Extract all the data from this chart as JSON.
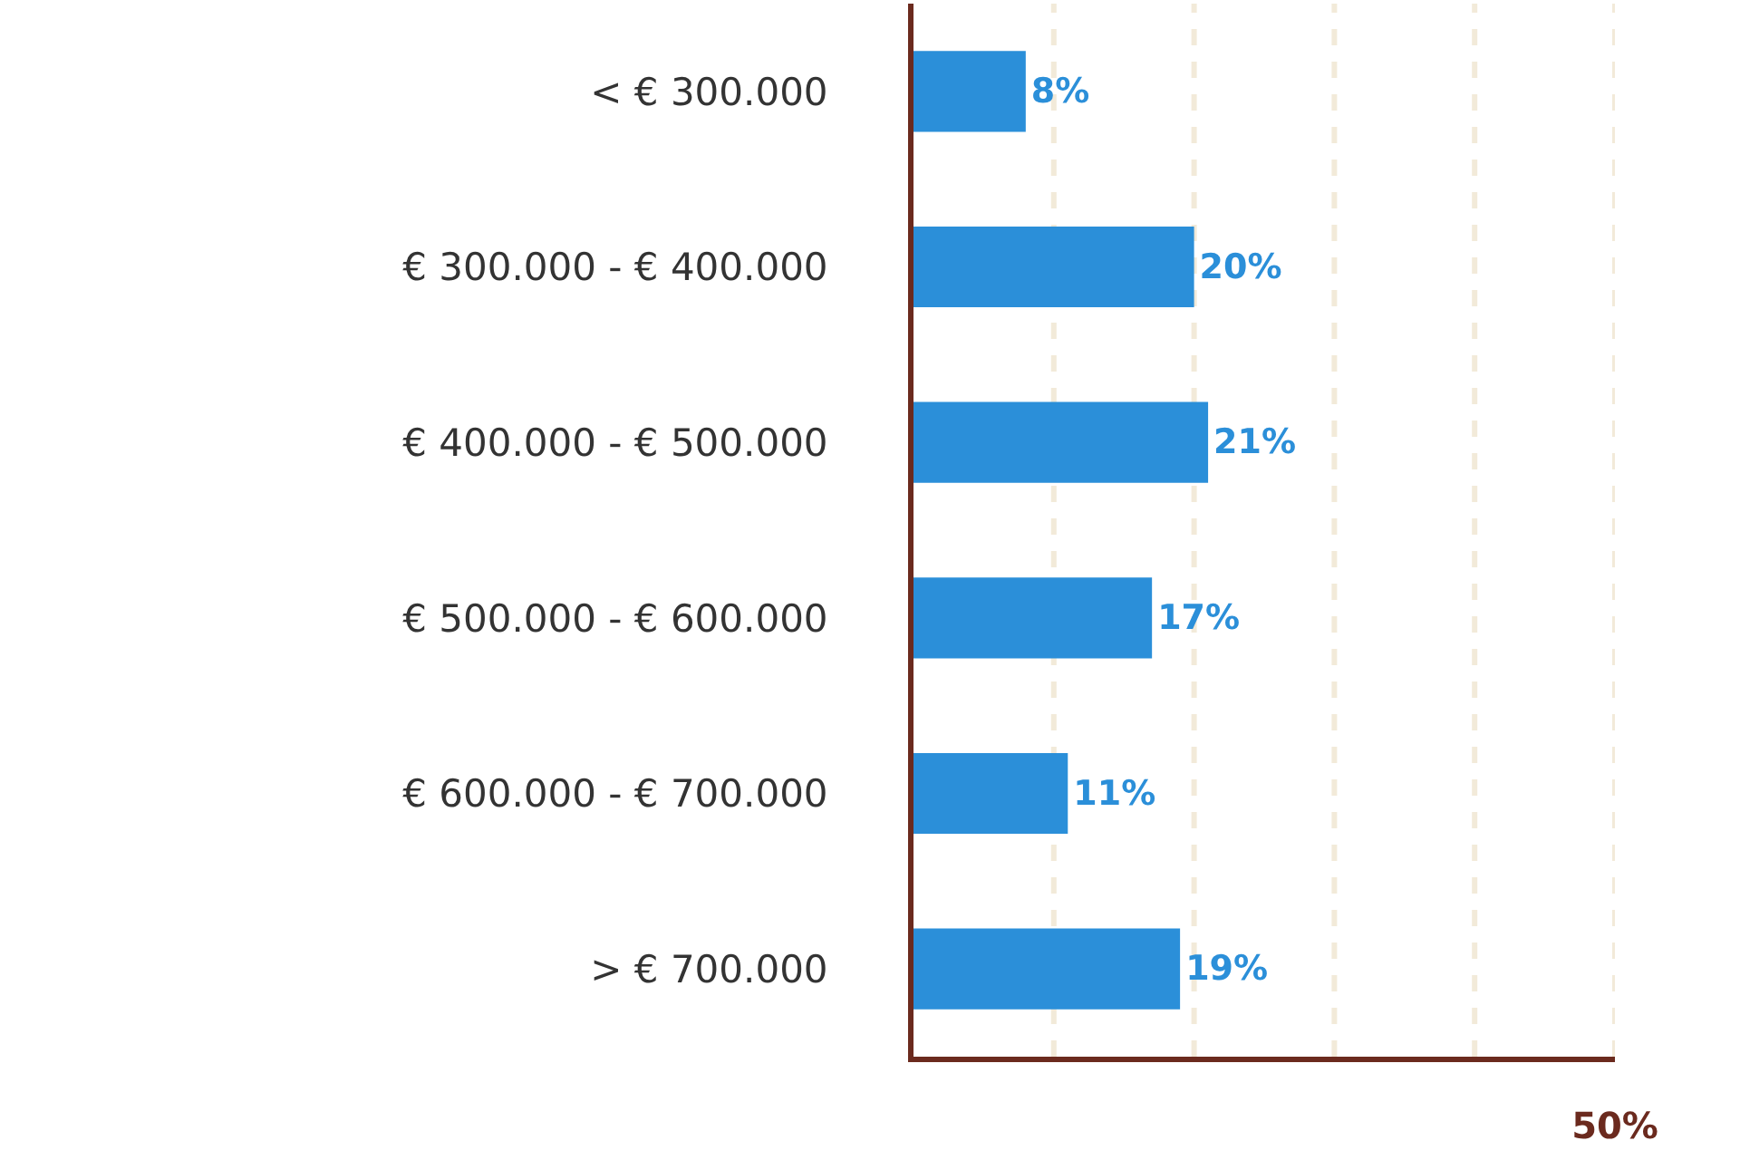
{
  "chart_data": {
    "type": "bar",
    "orientation": "horizontal",
    "categories": [
      "< € 300.000",
      "€ 300.000 - € 400.000",
      "€ 400.000 - € 500.000",
      "€ 500.000 - € 600.000",
      "€ 600.000 - € 700.000",
      "> € 700.000"
    ],
    "values": [
      8,
      20,
      21,
      17,
      11,
      19
    ],
    "value_labels": [
      "8%",
      "20%",
      "21%",
      "17%",
      "11%",
      "19%"
    ],
    "color": "#2b8fd9",
    "xlim": [
      0,
      50
    ],
    "xticks": [
      {
        "value": 10,
        "label": null
      },
      {
        "value": 20,
        "label": null
      },
      {
        "value": 30,
        "label": null
      },
      {
        "value": 40,
        "label": null
      },
      {
        "value": 50,
        "label": "50%"
      }
    ],
    "grid": "x",
    "legend": false
  }
}
